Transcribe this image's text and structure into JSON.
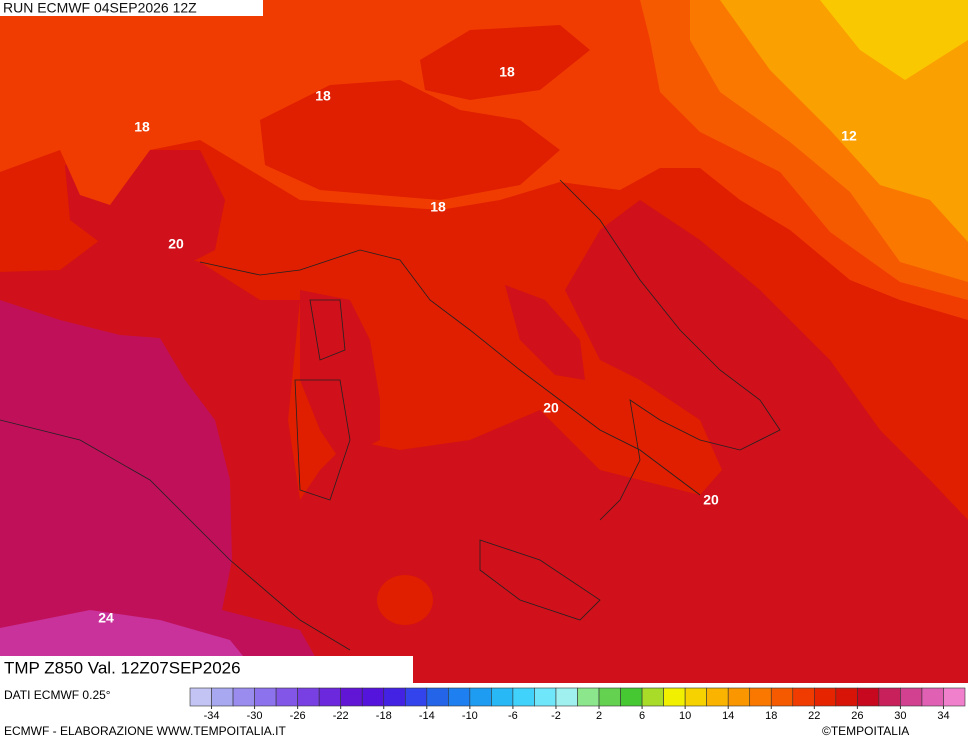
{
  "header": {
    "run": "RUN ECMWF 04SEP2026 12Z"
  },
  "map": {
    "contour_labels": [
      "18",
      "18",
      "18",
      "12",
      "18",
      "20",
      "20",
      "20",
      "24"
    ]
  },
  "footer": {
    "title": "TMP Z850 Val. 12Z07SEP2026",
    "source": "DATI ECMWF 0.25°",
    "credit": "ECMWF - ELABORAZIONE WWW.TEMPOITALIA.IT",
    "copyright": "©TEMPOITALIA"
  },
  "legend": {
    "labels": [
      -34,
      -30,
      -26,
      -22,
      -18,
      -14,
      -10,
      -6,
      -2,
      2,
      6,
      10,
      14,
      18,
      22,
      26,
      30,
      34
    ],
    "colors": [
      "#c4c4f4",
      "#a8a8f0",
      "#9a8cee",
      "#8c72ec",
      "#8256e6",
      "#7840e2",
      "#6c28dc",
      "#6016d4",
      "#5414dc",
      "#4422e4",
      "#3444ec",
      "#2464e8",
      "#1e80f0",
      "#1e9cf2",
      "#28b8f6",
      "#40d2fa",
      "#70e6fa",
      "#a0f0f0",
      "#8ce68c",
      "#64d250",
      "#46c832",
      "#a8dc28",
      "#f0f000",
      "#f5d200",
      "#fab400",
      "#fa9600",
      "#fa7800",
      "#f55a00",
      "#f03c00",
      "#e62400",
      "#d81408",
      "#c8081e",
      "#c8205a",
      "#d24090",
      "#e060b4",
      "#f080cc"
    ]
  }
}
